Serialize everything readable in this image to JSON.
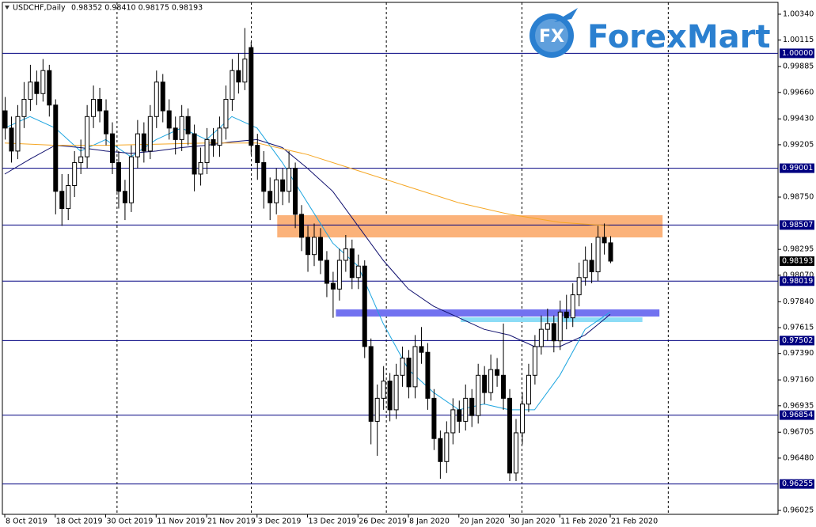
{
  "chart_data": {
    "type": "candlestick",
    "title": "USDCHF,Daily",
    "subtitle": "0.98352 0.98410 0.98175 0.98193",
    "logo": {
      "icon": "FX",
      "text": "ForexMart"
    },
    "up_color": "#ffffff",
    "down_color": "#000000",
    "candles": [
      [
        0.995,
        0.9962,
        0.9925,
        0.9935
      ],
      [
        0.9935,
        0.9945,
        0.9905,
        0.9915
      ],
      [
        0.9915,
        0.9955,
        0.9908,
        0.9945
      ],
      [
        0.9945,
        0.9975,
        0.9935,
        0.996
      ],
      [
        0.996,
        0.999,
        0.995,
        0.9975
      ],
      [
        0.9975,
        0.9985,
        0.9955,
        0.9965
      ],
      [
        0.9965,
        0.9995,
        0.9958,
        0.9985
      ],
      [
        0.9985,
        0.999,
        0.9945,
        0.9955
      ],
      [
        0.9955,
        0.996,
        0.986,
        0.988
      ],
      [
        0.988,
        0.9895,
        0.985,
        0.9865
      ],
      [
        0.9865,
        0.9895,
        0.9855,
        0.9885
      ],
      [
        0.9885,
        0.9915,
        0.9875,
        0.9905
      ],
      [
        0.9905,
        0.9925,
        0.9895,
        0.991
      ],
      [
        0.991,
        0.9955,
        0.99,
        0.9945
      ],
      [
        0.9945,
        0.9972,
        0.9935,
        0.996
      ],
      [
        0.996,
        0.997,
        0.994,
        0.995
      ],
      [
        0.995,
        0.996,
        0.992,
        0.993
      ],
      [
        0.993,
        0.994,
        0.9895,
        0.9905
      ],
      [
        0.9905,
        0.9915,
        0.9865,
        0.988
      ],
      [
        0.988,
        0.989,
        0.9855,
        0.987
      ],
      [
        0.987,
        0.992,
        0.9862,
        0.991
      ],
      [
        0.991,
        0.9942,
        0.99,
        0.993
      ],
      [
        0.993,
        0.994,
        0.9905,
        0.9915
      ],
      [
        0.9915,
        0.9955,
        0.9908,
        0.9945
      ],
      [
        0.9945,
        0.9985,
        0.9935,
        0.9975
      ],
      [
        0.9975,
        0.9982,
        0.994,
        0.995
      ],
      [
        0.995,
        0.996,
        0.9925,
        0.9935
      ],
      [
        0.9935,
        0.9945,
        0.9912,
        0.9925
      ],
      [
        0.9925,
        0.9955,
        0.9915,
        0.9945
      ],
      [
        0.9945,
        0.9952,
        0.992,
        0.993
      ],
      [
        0.993,
        0.9938,
        0.988,
        0.9895
      ],
      [
        0.9895,
        0.9918,
        0.9885,
        0.9905
      ],
      [
        0.9905,
        0.9935,
        0.9895,
        0.9925
      ],
      [
        0.9925,
        0.9935,
        0.991,
        0.992
      ],
      [
        0.992,
        0.9945,
        0.991,
        0.9935
      ],
      [
        0.9935,
        0.9972,
        0.9925,
        0.996
      ],
      [
        0.996,
        0.9995,
        0.995,
        0.9985
      ],
      [
        0.9985,
        1.0,
        0.9965,
        0.9975
      ],
      [
        0.9975,
        1.0022,
        0.9968,
        0.9995
      ],
      [
        1.0005,
        1.001,
        0.9912,
        0.992
      ],
      [
        0.992,
        0.993,
        0.989,
        0.9905
      ],
      [
        0.9905,
        0.9915,
        0.9865,
        0.988
      ],
      [
        0.988,
        0.9892,
        0.9855,
        0.987
      ],
      [
        0.987,
        0.99,
        0.986,
        0.989
      ],
      [
        0.989,
        0.99,
        0.9868,
        0.988
      ],
      [
        0.988,
        0.9915,
        0.987,
        0.99
      ],
      [
        0.99,
        0.9905,
        0.9848,
        0.986
      ],
      [
        0.986,
        0.9868,
        0.9828,
        0.984
      ],
      [
        0.984,
        0.985,
        0.981,
        0.9825
      ],
      [
        0.9825,
        0.9852,
        0.9815,
        0.984
      ],
      [
        0.984,
        0.9848,
        0.9808,
        0.982
      ],
      [
        0.982,
        0.9828,
        0.9788,
        0.98
      ],
      [
        0.98,
        0.981,
        0.977,
        0.9795
      ],
      [
        0.9795,
        0.983,
        0.9785,
        0.982
      ],
      [
        0.982,
        0.9842,
        0.981,
        0.983
      ],
      [
        0.983,
        0.9838,
        0.9795,
        0.9805
      ],
      [
        0.9805,
        0.9825,
        0.9795,
        0.9815
      ],
      [
        0.9815,
        0.982,
        0.9735,
        0.9745
      ],
      [
        0.9745,
        0.9752,
        0.966,
        0.968
      ],
      [
        0.968,
        0.9712,
        0.965,
        0.97
      ],
      [
        0.97,
        0.9728,
        0.969,
        0.9715
      ],
      [
        0.9715,
        0.9722,
        0.968,
        0.969
      ],
      [
        0.969,
        0.973,
        0.9682,
        0.972
      ],
      [
        0.972,
        0.9745,
        0.971,
        0.9735
      ],
      [
        0.9735,
        0.9742,
        0.97,
        0.971
      ],
      [
        0.971,
        0.9755,
        0.97,
        0.9745
      ],
      [
        0.9745,
        0.9762,
        0.973,
        0.974
      ],
      [
        0.974,
        0.9748,
        0.969,
        0.97
      ],
      [
        0.97,
        0.9708,
        0.9655,
        0.9665
      ],
      [
        0.9665,
        0.9672,
        0.963,
        0.9645
      ],
      [
        0.9645,
        0.968,
        0.9635,
        0.967
      ],
      [
        0.967,
        0.97,
        0.966,
        0.969
      ],
      [
        0.969,
        0.9698,
        0.967,
        0.968
      ],
      [
        0.968,
        0.9712,
        0.9672,
        0.97
      ],
      [
        0.97,
        0.9708,
        0.9675,
        0.9685
      ],
      [
        0.9685,
        0.973,
        0.9678,
        0.972
      ],
      [
        0.972,
        0.9728,
        0.9695,
        0.9705
      ],
      [
        0.9705,
        0.9738,
        0.9698,
        0.9725
      ],
      [
        0.9725,
        0.9735,
        0.971,
        0.972
      ],
      [
        0.972,
        0.9765,
        0.969,
        0.97
      ],
      [
        0.97,
        0.9708,
        0.9628,
        0.9635
      ],
      [
        0.9635,
        0.9682,
        0.9628,
        0.967
      ],
      [
        0.967,
        0.9705,
        0.966,
        0.9695
      ],
      [
        0.9695,
        0.973,
        0.9688,
        0.972
      ],
      [
        0.972,
        0.9755,
        0.9712,
        0.9745
      ],
      [
        0.9745,
        0.9772,
        0.9738,
        0.976
      ],
      [
        0.976,
        0.9778,
        0.975,
        0.9765
      ],
      [
        0.9765,
        0.9772,
        0.974,
        0.975
      ],
      [
        0.975,
        0.9785,
        0.9742,
        0.9775
      ],
      [
        0.9775,
        0.979,
        0.976,
        0.977
      ],
      [
        0.977,
        0.98,
        0.9762,
        0.979
      ],
      [
        0.979,
        0.9818,
        0.978,
        0.9805
      ],
      [
        0.9805,
        0.9832,
        0.9798,
        0.982
      ],
      [
        0.982,
        0.9835,
        0.98,
        0.981
      ],
      [
        0.981,
        0.985,
        0.9802,
        0.984
      ],
      [
        0.984,
        0.9852,
        0.9825,
        0.98352
      ],
      [
        0.98352,
        0.9841,
        0.98175,
        0.98193
      ]
    ],
    "moving_averages": [
      {
        "color": "#1fa6e0",
        "x": [
          0,
          4,
          8,
          12,
          16,
          20,
          24,
          28,
          32,
          36,
          40,
          44,
          48,
          52,
          56,
          60,
          64,
          68,
          72,
          76,
          80,
          84,
          88,
          92,
          96
        ],
        "values": [
          0.9935,
          0.9945,
          0.9935,
          0.9915,
          0.9925,
          0.991,
          0.9925,
          0.9935,
          0.9925,
          0.9945,
          0.9935,
          0.9905,
          0.987,
          0.9835,
          0.9815,
          0.9765,
          0.9725,
          0.9705,
          0.969,
          0.9695,
          0.969,
          0.969,
          0.972,
          0.976,
          0.9775
        ]
      },
      {
        "color": "#10106e",
        "x": [
          0,
          4,
          8,
          12,
          16,
          20,
          24,
          28,
          32,
          36,
          40,
          44,
          48,
          52,
          56,
          60,
          64,
          68,
          72,
          76,
          80,
          84,
          88,
          92,
          96
        ],
        "values": [
          0.9895,
          0.9908,
          0.992,
          0.9918,
          0.9915,
          0.9913,
          0.9915,
          0.9918,
          0.992,
          0.9923,
          0.9925,
          0.9918,
          0.99,
          0.988,
          0.985,
          0.982,
          0.9795,
          0.978,
          0.977,
          0.976,
          0.9755,
          0.9745,
          0.9745,
          0.9755,
          0.9773
        ]
      },
      {
        "color": "#f5a623",
        "x": [
          0,
          8,
          16,
          24,
          32,
          40,
          48,
          56,
          64,
          72,
          80,
          88,
          96
        ],
        "values": [
          0.9922,
          0.992,
          0.992,
          0.9921,
          0.9922,
          0.9922,
          0.9912,
          0.9898,
          0.9884,
          0.987,
          0.986,
          0.9853,
          0.985
        ]
      }
    ],
    "zones": [
      {
        "x": [
          43.2,
          104.3
        ],
        "y": [
          0.98592,
          0.98399
        ],
        "color": "#fbb27a"
      },
      {
        "x": [
          52.5,
          103.8
        ],
        "y": [
          0.97773,
          0.97711
        ],
        "color": "#7272f0"
      },
      {
        "x": [
          72.3,
          101.1
        ],
        "y": [
          0.97704,
          0.97663
        ],
        "color": "#8cdcf6"
      }
    ],
    "levels": [
      {
        "value": 1.0,
        "label": "1.00000"
      },
      0.99001,
      0.98507,
      0.98019,
      0.97502,
      0.96854,
      0.96255
    ],
    "last_price": 0.98193,
    "xlim": [
      -0.38,
      122.6
    ],
    "ylim": [
      0.95991,
      1.00443
    ],
    "xticks": [
      {
        "value": 0,
        "label": "8 Oct 2019"
      },
      {
        "value": 8,
        "label": "18 Oct 2019"
      },
      {
        "value": 16,
        "label": "30 Oct 2019"
      },
      {
        "value": 24,
        "label": "11 Nov 2019"
      },
      {
        "value": 32,
        "label": "21 Nov 2019"
      },
      {
        "value": 40,
        "label": "3 Dec 2019"
      },
      {
        "value": 48,
        "label": "13 Dec 2019"
      },
      {
        "value": 56,
        "label": "26 Dec 2019"
      },
      {
        "value": 64,
        "label": "8 Jan 2020"
      },
      {
        "value": 72,
        "label": "20 Jan 2020"
      },
      {
        "value": 80,
        "label": "30 Jan 2020"
      },
      {
        "value": 88,
        "label": "11 Feb 2020"
      },
      {
        "value": 96,
        "label": "21 Feb 2020"
      }
    ],
    "yticks": [
      {
        "value": 1.0034,
        "label": "1.00340"
      },
      1.00115,
      0.99885,
      {
        "value": 0.9966,
        "label": "0.99660"
      },
      {
        "value": 0.9943,
        "label": "0.99430"
      },
      0.99205,
      {
        "value": 0.9875,
        "label": "0.98750"
      },
      0.98295,
      {
        "value": 0.9807,
        "label": "0.98070"
      },
      {
        "value": 0.9784,
        "label": "0.97840"
      },
      0.97615,
      {
        "value": 0.9739,
        "label": "0.97390"
      },
      {
        "value": 0.9716,
        "label": "0.97160"
      },
      0.96935,
      0.96705,
      {
        "value": 0.9648,
        "label": "0.96480"
      },
      0.96025
    ],
    "xgrid": [
      17.8,
      39.1,
      60.5,
      82,
      105.2
    ],
    "grid": true
  }
}
